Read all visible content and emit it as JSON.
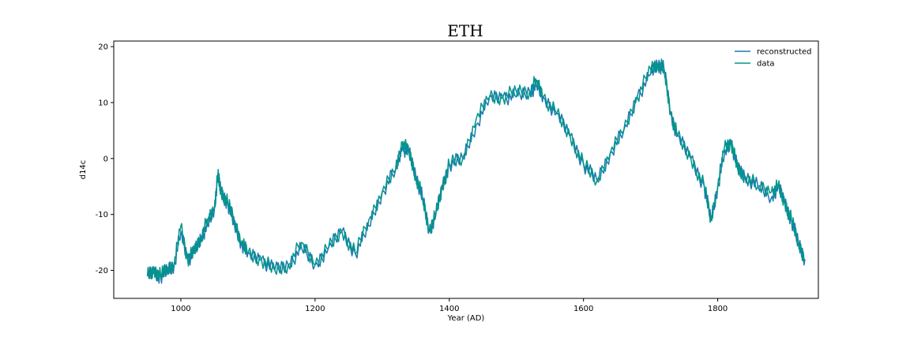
{
  "chart_data": {
    "type": "line",
    "title": "ETH",
    "xlabel": "Year (AD)",
    "ylabel": "d14c",
    "xlim": [
      900,
      1950
    ],
    "ylim": [
      -25,
      21
    ],
    "xticks": [
      1000,
      1200,
      1400,
      1600,
      1800
    ],
    "yticks": [
      -20,
      -10,
      0,
      10,
      20
    ],
    "grid": false,
    "legend_position": "top-right",
    "series": [
      {
        "name": "reconstructed",
        "color": "#1f77b4",
        "x": [
          950,
          960,
          970,
          980,
          990,
          1000,
          1010,
          1020,
          1030,
          1040,
          1050,
          1055,
          1060,
          1070,
          1080,
          1090,
          1100,
          1120,
          1140,
          1160,
          1180,
          1200,
          1220,
          1240,
          1260,
          1280,
          1300,
          1320,
          1330,
          1340,
          1350,
          1360,
          1370,
          1380,
          1390,
          1400,
          1420,
          1440,
          1460,
          1480,
          1500,
          1520,
          1530,
          1540,
          1560,
          1580,
          1600,
          1620,
          1640,
          1660,
          1680,
          1700,
          1710,
          1720,
          1730,
          1740,
          1760,
          1780,
          1790,
          1800,
          1810,
          1820,
          1830,
          1840,
          1860,
          1880,
          1890,
          1900,
          1910,
          1920,
          1930
        ],
        "y": [
          -21,
          -20.5,
          -21,
          -20,
          -19,
          -13,
          -18,
          -17,
          -14,
          -12,
          -9,
          -3,
          -6,
          -8,
          -12,
          -15,
          -17,
          -18,
          -20,
          -19,
          -16,
          -19,
          -16,
          -13,
          -17,
          -12,
          -6,
          -2,
          2,
          1,
          -3,
          -7,
          -13,
          -10,
          -5,
          -1,
          0,
          6,
          11,
          11,
          11,
          12,
          13,
          11,
          8,
          4,
          -1,
          -4,
          1,
          5,
          11,
          15,
          17,
          16,
          8,
          4,
          0,
          -5,
          -11,
          -5,
          1,
          3,
          -2,
          -3,
          -5,
          -7,
          -5,
          -8,
          -11,
          -15,
          -18
        ]
      },
      {
        "name": "data",
        "color": "#009688",
        "x": [
          950,
          960,
          970,
          980,
          990,
          1000,
          1010,
          1020,
          1030,
          1040,
          1050,
          1055,
          1060,
          1070,
          1080,
          1090,
          1100,
          1120,
          1140,
          1160,
          1180,
          1200,
          1220,
          1240,
          1260,
          1280,
          1300,
          1320,
          1330,
          1340,
          1350,
          1360,
          1370,
          1380,
          1390,
          1400,
          1420,
          1440,
          1460,
          1480,
          1500,
          1520,
          1530,
          1540,
          1560,
          1580,
          1600,
          1620,
          1640,
          1660,
          1680,
          1700,
          1710,
          1720,
          1730,
          1740,
          1760,
          1780,
          1790,
          1800,
          1810,
          1820,
          1830,
          1840,
          1860,
          1880,
          1890,
          1900,
          1910,
          1920,
          1930
        ],
        "y": [
          -21,
          -20,
          -21,
          -19.5,
          -19,
          -12,
          -18,
          -16.5,
          -14,
          -11,
          -9,
          -3,
          -6,
          -8,
          -11,
          -15,
          -17,
          -18,
          -20,
          -19,
          -15,
          -19,
          -16,
          -13,
          -17,
          -11,
          -6,
          -2,
          3,
          1,
          -3,
          -7,
          -13,
          -10,
          -5,
          -1,
          0,
          7,
          11,
          11,
          12,
          12,
          14,
          11,
          8,
          4,
          -1,
          -4,
          1,
          5,
          11,
          16,
          17,
          16,
          8,
          4,
          0,
          -5,
          -11,
          -5,
          2,
          3,
          -2,
          -3,
          -5,
          -6,
          -5,
          -8,
          -11,
          -15,
          -18
        ]
      }
    ]
  }
}
